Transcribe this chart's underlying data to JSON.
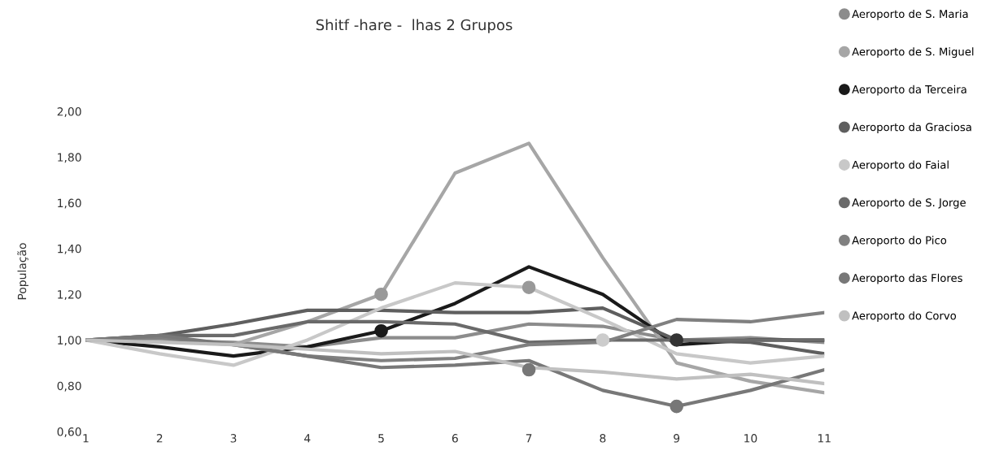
{
  "chart_data": {
    "type": "line",
    "title": "Shitf -hare -  lhas 2 Grupos",
    "ylabel": "População",
    "x": [
      1,
      2,
      3,
      4,
      5,
      6,
      7,
      8,
      9,
      10,
      11
    ],
    "xlim": [
      1,
      11
    ],
    "xticks": [
      1,
      2,
      3,
      4,
      5,
      6,
      7,
      8,
      9,
      10,
      11
    ],
    "ylim": [
      0.6,
      2.0
    ],
    "yticks": [
      {
        "value": 0.6,
        "label": "0,60"
      },
      {
        "value": 0.8,
        "label": "0,80"
      },
      {
        "value": 1.0,
        "label": "1,00"
      },
      {
        "value": 1.2,
        "label": "1,20"
      },
      {
        "value": 1.4,
        "label": "1,40"
      },
      {
        "value": 1.6,
        "label": "1,60"
      },
      {
        "value": 1.8,
        "label": "1,80"
      },
      {
        "value": 2.0,
        "label": "2,00"
      }
    ],
    "grid": false,
    "legend": "right",
    "line_style": "solid",
    "series": [
      {
        "name": "Aeroporto de S. Maria",
        "color": "#8c8c8c",
        "values": [
          1.0,
          1.0,
          0.99,
          0.97,
          1.01,
          1.01,
          1.07,
          1.06,
          1.0,
          1.01,
          0.99
        ]
      },
      {
        "name": "Aeroporto de S. Miguel",
        "color": "#a6a6a6",
        "values": [
          1.0,
          1.0,
          0.98,
          1.08,
          1.2,
          1.73,
          1.86,
          1.36,
          0.9,
          0.82,
          0.77
        ]
      },
      {
        "name": "Aeroporto da Terceira",
        "color": "#1a1a1a",
        "values": [
          1.0,
          0.97,
          0.93,
          0.97,
          1.04,
          1.16,
          1.32,
          1.2,
          0.98,
          1.0,
          1.0
        ]
      },
      {
        "name": "Aeroporto da Graciosa",
        "color": "#5f5f5f",
        "values": [
          1.0,
          1.02,
          1.07,
          1.13,
          1.13,
          1.12,
          1.12,
          1.14,
          1.0,
          0.99,
          0.94
        ]
      },
      {
        "name": "Aeroporto do Faial",
        "color": "#c8c8c8",
        "values": [
          1.0,
          0.94,
          0.89,
          1.0,
          1.14,
          1.25,
          1.23,
          1.09,
          0.94,
          0.9,
          0.93
        ]
      },
      {
        "name": "Aeroporto de S. Jorge",
        "color": "#6a6a6a",
        "values": [
          1.0,
          1.02,
          1.02,
          1.08,
          1.08,
          1.07,
          0.99,
          1.0,
          1.0,
          1.0,
          1.0
        ]
      },
      {
        "name": "Aeroporto do Pico",
        "color": "#808080",
        "values": [
          1.0,
          1.01,
          0.98,
          0.93,
          0.91,
          0.92,
          0.98,
          0.99,
          1.09,
          1.08,
          1.12
        ]
      },
      {
        "name": "Aeroporto das Flores",
        "color": "#787878",
        "values": [
          1.0,
          1.02,
          0.98,
          0.93,
          0.88,
          0.89,
          0.91,
          0.78,
          0.71,
          0.78,
          0.87
        ]
      },
      {
        "name": "Aeroporto do Corvo",
        "color": "#c0c0c0",
        "values": [
          1.0,
          0.99,
          0.98,
          0.96,
          0.94,
          0.95,
          0.88,
          0.86,
          0.83,
          0.85,
          0.81
        ]
      },
      {
        "type": "scatter",
        "marker": "circle",
        "color": "#999999",
        "x": [
          5,
          7
        ],
        "values": [
          1.2,
          1.23
        ]
      },
      {
        "type": "scatter",
        "marker": "circle",
        "color": "#1a1a1a",
        "x": [
          5
        ],
        "values": [
          1.04
        ]
      },
      {
        "type": "scatter",
        "marker": "circle",
        "color": "#777777",
        "x": [
          7,
          9
        ],
        "values": [
          0.87,
          0.71
        ]
      },
      {
        "type": "scatter",
        "marker": "circle",
        "color": "#cccccc",
        "x": [
          8
        ],
        "values": [
          1.0
        ]
      },
      {
        "type": "scatter",
        "marker": "circle",
        "color": "#333333",
        "x": [
          9
        ],
        "values": [
          1.0
        ]
      }
    ]
  }
}
